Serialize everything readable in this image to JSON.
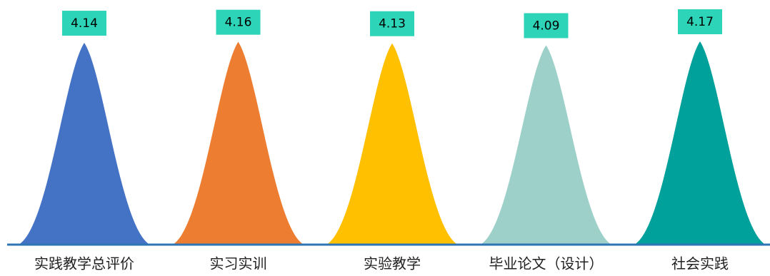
{
  "chart_data": {
    "type": "peak",
    "categories": [
      "实践教学总评价",
      "实习实训",
      "实验教学",
      "毕业论文（设计）",
      "社会实践"
    ],
    "values": [
      4.14,
      4.16,
      4.13,
      4.09,
      4.17
    ],
    "colors": [
      "#4472c4",
      "#ed7d31",
      "#ffc000",
      "#9dd0c9",
      "#00a19a"
    ],
    "label_color": "#2dd4b8",
    "baseline_color": "#2e75b6"
  }
}
